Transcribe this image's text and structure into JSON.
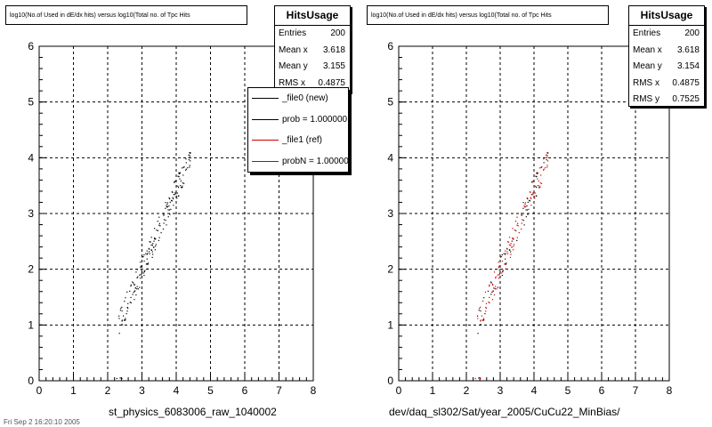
{
  "chart_data": [
    {
      "type": "scatter",
      "title": "log10(No.of Used in dE/dx hits) versus log10(Total no. of Tpc Hits",
      "xlabel": "",
      "ylabel": "",
      "xlim": [
        0,
        8
      ],
      "ylim": [
        0,
        6
      ],
      "xticks": [
        "0",
        "1",
        "2",
        "3",
        "4",
        "5",
        "6",
        "7",
        "8"
      ],
      "yticks": [
        "0",
        "1",
        "2",
        "3",
        "4",
        "5",
        "6"
      ],
      "grid": true,
      "series": [
        {
          "name": "_file0 (new)",
          "color": "#000000"
        }
      ],
      "stats": {
        "title": "HitsUsage",
        "rows": [
          {
            "label": "Entries",
            "value": "200"
          },
          {
            "label": "Mean x",
            "value": "3.618"
          },
          {
            "label": "Mean y",
            "value": "3.155"
          },
          {
            "label": "RMS x",
            "value": "0.4875"
          }
        ]
      },
      "legend": {
        "position": "top-right",
        "entries": [
          {
            "label": "_file0 (new)",
            "color": "#000000"
          },
          {
            "label": "prob = 1.000000",
            "color": "#000000"
          },
          {
            "label": "_file1 (ref)",
            "color": "#cc0000"
          },
          {
            "label": "probN = 1.000000",
            "color": "#cc0000"
          }
        ]
      },
      "caption": "st_physics_6083006_raw_1040002"
    },
    {
      "type": "scatter",
      "title": "log10(No.of Used in dE/dx hits) versus log10(Total no. of Tpc Hits",
      "xlabel": "",
      "ylabel": "",
      "xlim": [
        0,
        8
      ],
      "ylim": [
        0,
        6
      ],
      "xticks": [
        "0",
        "1",
        "2",
        "3",
        "4",
        "5",
        "6",
        "7",
        "8"
      ],
      "yticks": [
        "0",
        "1",
        "2",
        "3",
        "4",
        "5",
        "6"
      ],
      "grid": true,
      "series": [
        {
          "name": "",
          "color": "#000000"
        },
        {
          "name": "",
          "color": "#cc0000"
        }
      ],
      "stats": {
        "title": "HitsUsage",
        "rows": [
          {
            "label": "Entries",
            "value": "200"
          },
          {
            "label": "Mean x",
            "value": "3.618"
          },
          {
            "label": "Mean y",
            "value": "3.154"
          },
          {
            "label": "RMS x",
            "value": "0.4875"
          },
          {
            "label": "RMS y",
            "value": "0.7525"
          }
        ]
      },
      "caption": "dev/daq_sl302/Sat/year_2005/CuCu22_MinBias/"
    }
  ],
  "footer_text": "Fri Sep  2 16:20:10 2005"
}
